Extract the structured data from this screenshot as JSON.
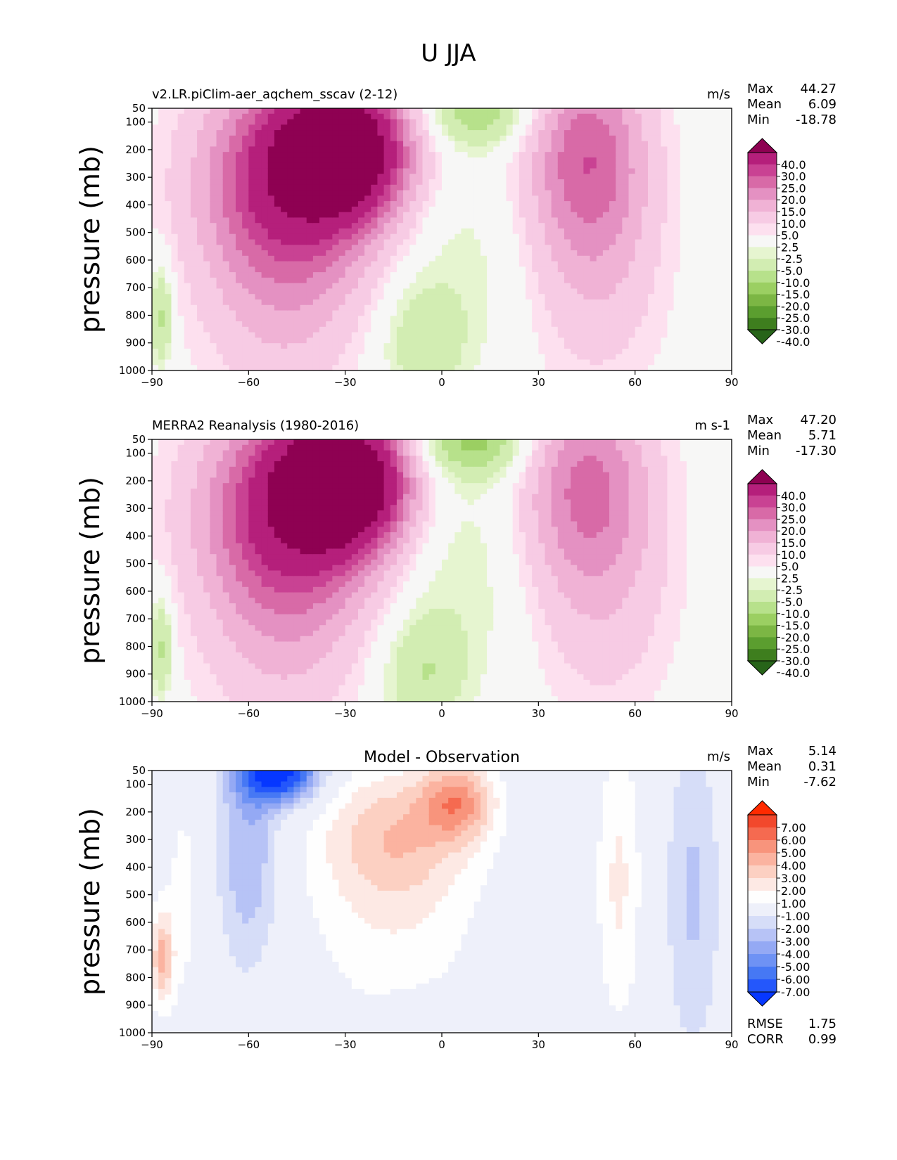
{
  "figure": {
    "title": "U JJA"
  },
  "colors": {
    "diverging_pink_green": [
      "#276419",
      "#3e7e1e",
      "#5b9e2f",
      "#7cb644",
      "#9bcf62",
      "#b7e18b",
      "#d2edb2",
      "#e6f5d0",
      "#f7f7f6",
      "#fde0ef",
      "#f7cbe4",
      "#f0b2d5",
      "#e491c2",
      "#d86aa7",
      "#c94293",
      "#b51f7b",
      "#8e0152"
    ],
    "diverging_blue_red": [
      "#0637ff",
      "#2457fb",
      "#4678f4",
      "#6e92f4",
      "#94a9f4",
      "#b7c3f6",
      "#d6ddf8",
      "#eef0fa",
      "#fefefe",
      "#fde9e4",
      "#fcd0c2",
      "#fbb3a0",
      "#f8947c",
      "#f56a50",
      "#f2482c",
      "#ff2a00"
    ]
  },
  "chart_data": [
    {
      "type": "heatmap",
      "title_left": "v2.LR.piClim-aer_aqchem_sscav (2-12)",
      "title_center": "",
      "units": "m/s",
      "ylabel": "pressure (mb)",
      "xticks": [
        "−90",
        "−60",
        "−30",
        "0",
        "30",
        "60",
        "90"
      ],
      "yticks": [
        "50",
        "100",
        "200",
        "300",
        "400",
        "500",
        "600",
        "700",
        "800",
        "900",
        "1000"
      ],
      "xlim": [
        -90,
        90
      ],
      "ylim": [
        1000,
        50
      ],
      "stats": [
        {
          "label": "Max",
          "value": "44.27"
        },
        {
          "label": "Mean",
          "value": "6.09"
        },
        {
          "label": "Min",
          "value": "-18.78"
        }
      ],
      "colorbar_levels": [
        "40.0",
        "30.0",
        "25.0",
        "20.0",
        "15.0",
        "10.0",
        "5.0",
        "2.5",
        "-2.5",
        "-5.0",
        "-10.0",
        "-15.0",
        "-20.0",
        "-25.0",
        "-30.0",
        "-40.0"
      ],
      "colormap": "diverging_pink_green",
      "jets": [
        {
          "lat": -30,
          "p": 200,
          "value": 44.27,
          "sx": 13,
          "sp": 160
        },
        {
          "lat": -45,
          "p": 280,
          "value": 28,
          "sx": 20,
          "sp": 260
        },
        {
          "lat": -50,
          "p": 600,
          "value": 12,
          "sx": 18,
          "sp": 380
        },
        {
          "lat": 45,
          "p": 210,
          "value": 22,
          "sx": 13,
          "sp": 260
        },
        {
          "lat": 48,
          "p": 650,
          "value": 8,
          "sx": 15,
          "sp": 320
        },
        {
          "lat": 12,
          "p": 60,
          "value": -14,
          "sx": 12,
          "sp": 90
        },
        {
          "lat": -6,
          "p": 900,
          "value": -8,
          "sx": 9,
          "sp": 150
        },
        {
          "lat": 5,
          "p": 600,
          "value": -4,
          "sx": 16,
          "sp": 300
        },
        {
          "lat": -87,
          "p": 800,
          "value": -12,
          "sx": 2.5,
          "sp": 130
        }
      ]
    },
    {
      "type": "heatmap",
      "title_left": "MERRA2 Reanalysis (1980-2016)",
      "title_center": "",
      "units": "m s-1",
      "ylabel": "pressure (mb)",
      "xticks": [
        "−90",
        "−60",
        "−30",
        "0",
        "30",
        "60",
        "90"
      ],
      "yticks": [
        "50",
        "100",
        "200",
        "300",
        "400",
        "500",
        "600",
        "700",
        "800",
        "900",
        "1000"
      ],
      "xlim": [
        -90,
        90
      ],
      "ylim": [
        1000,
        50
      ],
      "stats": [
        {
          "label": "Max",
          "value": "47.20"
        },
        {
          "label": "Mean",
          "value": "5.71"
        },
        {
          "label": "Min",
          "value": "-17.30"
        }
      ],
      "colorbar_levels": [
        "40.0",
        "30.0",
        "25.0",
        "20.0",
        "15.0",
        "10.0",
        "5.0",
        "2.5",
        "-2.5",
        "-5.0",
        "-10.0",
        "-15.0",
        "-20.0",
        "-25.0",
        "-30.0",
        "-40.0"
      ],
      "colormap": "diverging_pink_green",
      "jets": [
        {
          "lat": -30,
          "p": 200,
          "value": 47.2,
          "sx": 13,
          "sp": 160
        },
        {
          "lat": -45,
          "p": 280,
          "value": 28,
          "sx": 20,
          "sp": 260
        },
        {
          "lat": -50,
          "p": 600,
          "value": 12,
          "sx": 18,
          "sp": 380
        },
        {
          "lat": 45,
          "p": 210,
          "value": 20,
          "sx": 14,
          "sp": 260
        },
        {
          "lat": 50,
          "p": 650,
          "value": 7,
          "sx": 16,
          "sp": 320
        },
        {
          "lat": 10,
          "p": 60,
          "value": -16,
          "sx": 12,
          "sp": 90
        },
        {
          "lat": -6,
          "p": 900,
          "value": -9,
          "sx": 9,
          "sp": 150
        },
        {
          "lat": 5,
          "p": 500,
          "value": -5,
          "sx": 16,
          "sp": 320
        },
        {
          "lat": -87,
          "p": 800,
          "value": -12,
          "sx": 2.5,
          "sp": 130
        }
      ]
    },
    {
      "type": "heatmap",
      "title_left": "",
      "title_center": "Model - Observation",
      "units": "m/s",
      "ylabel": "pressure (mb)",
      "xticks": [
        "−90",
        "−60",
        "−30",
        "0",
        "30",
        "60",
        "90"
      ],
      "yticks": [
        "50",
        "100",
        "200",
        "300",
        "400",
        "500",
        "600",
        "700",
        "800",
        "900",
        "1000"
      ],
      "xlim": [
        -90,
        90
      ],
      "ylim": [
        1000,
        50
      ],
      "stats": [
        {
          "label": "Max",
          "value": "5.14"
        },
        {
          "label": "Mean",
          "value": "0.31"
        },
        {
          "label": "Min",
          "value": "-7.62"
        }
      ],
      "extra_stats": [
        {
          "label": "RMSE",
          "value": "1.75"
        },
        {
          "label": "CORR",
          "value": "0.99"
        }
      ],
      "colorbar_levels": [
        "7.00",
        "6.00",
        "5.00",
        "4.00",
        "3.00",
        "2.00",
        "1.00",
        "-1.00",
        "-2.00",
        "-3.00",
        "-4.00",
        "-5.00",
        "-6.00",
        "-7.00"
      ],
      "colormap": "diverging_blue_red",
      "jets": [
        {
          "lat": -50,
          "p": 60,
          "value": -7.62,
          "sx": 9,
          "sp": 80
        },
        {
          "lat": -60,
          "p": 350,
          "value": -3,
          "sx": 7,
          "sp": 300
        },
        {
          "lat": -15,
          "p": 280,
          "value": 3.5,
          "sx": 17,
          "sp": 180
        },
        {
          "lat": 5,
          "p": 160,
          "value": 4.5,
          "sx": 8,
          "sp": 100
        },
        {
          "lat": -15,
          "p": 650,
          "value": 1.5,
          "sx": 20,
          "sp": 260
        },
        {
          "lat": 55,
          "p": 450,
          "value": 2.2,
          "sx": 5,
          "sp": 380
        },
        {
          "lat": 78,
          "p": 500,
          "value": -2.2,
          "sx": 6,
          "sp": 420
        },
        {
          "lat": -87,
          "p": 730,
          "value": 4,
          "sx": 2.5,
          "sp": 120
        },
        {
          "lat": -80,
          "p": 500,
          "value": 1.3,
          "sx": 5,
          "sp": 350
        },
        {
          "lat": -5,
          "p": 950,
          "value": -1.2,
          "sx": 8,
          "sp": 60
        }
      ]
    }
  ]
}
